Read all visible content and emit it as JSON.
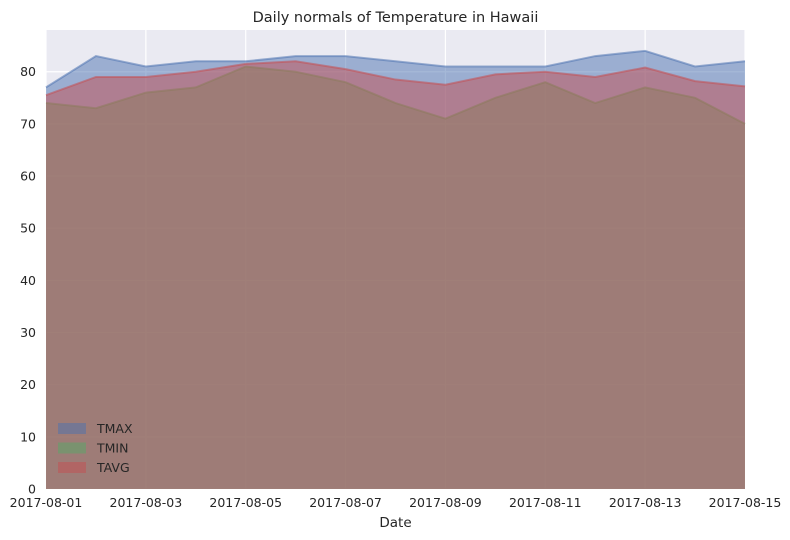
{
  "chart_data": {
    "type": "area",
    "title": "Daily normals of Temperature in Hawaii",
    "xlabel": "Date",
    "ylabel": "",
    "x": [
      "2017-08-01",
      "2017-08-02",
      "2017-08-03",
      "2017-08-04",
      "2017-08-05",
      "2017-08-06",
      "2017-08-07",
      "2017-08-08",
      "2017-08-09",
      "2017-08-10",
      "2017-08-11",
      "2017-08-12",
      "2017-08-13",
      "2017-08-14",
      "2017-08-15"
    ],
    "x_tick_labels": [
      "2017-08-01",
      "2017-08-03",
      "2017-08-05",
      "2017-08-07",
      "2017-08-09",
      "2017-08-11",
      "2017-08-13",
      "2017-08-15"
    ],
    "y_ticks": [
      0,
      10,
      20,
      30,
      40,
      50,
      60,
      70,
      80
    ],
    "ylim": [
      0,
      88
    ],
    "stacked": false,
    "grid": true,
    "legend_position": "lower-left",
    "series": [
      {
        "name": "TMAX",
        "color": "#4c72b0",
        "values": [
          77,
          83,
          81,
          82,
          82,
          83,
          83,
          82,
          81,
          81,
          81,
          83,
          84,
          81,
          82
        ]
      },
      {
        "name": "TMIN",
        "color": "#55a868",
        "values": [
          74,
          73,
          76,
          77,
          81,
          80,
          78,
          74,
          71,
          75,
          78,
          74,
          77,
          75,
          70
        ]
      },
      {
        "name": "TAVG",
        "color": "#c44e52",
        "values": [
          75.5,
          79,
          79,
          80,
          81.5,
          82,
          80.5,
          78.5,
          77.5,
          79.5,
          80,
          79,
          80.8,
          78.2,
          77.2
        ]
      }
    ]
  }
}
